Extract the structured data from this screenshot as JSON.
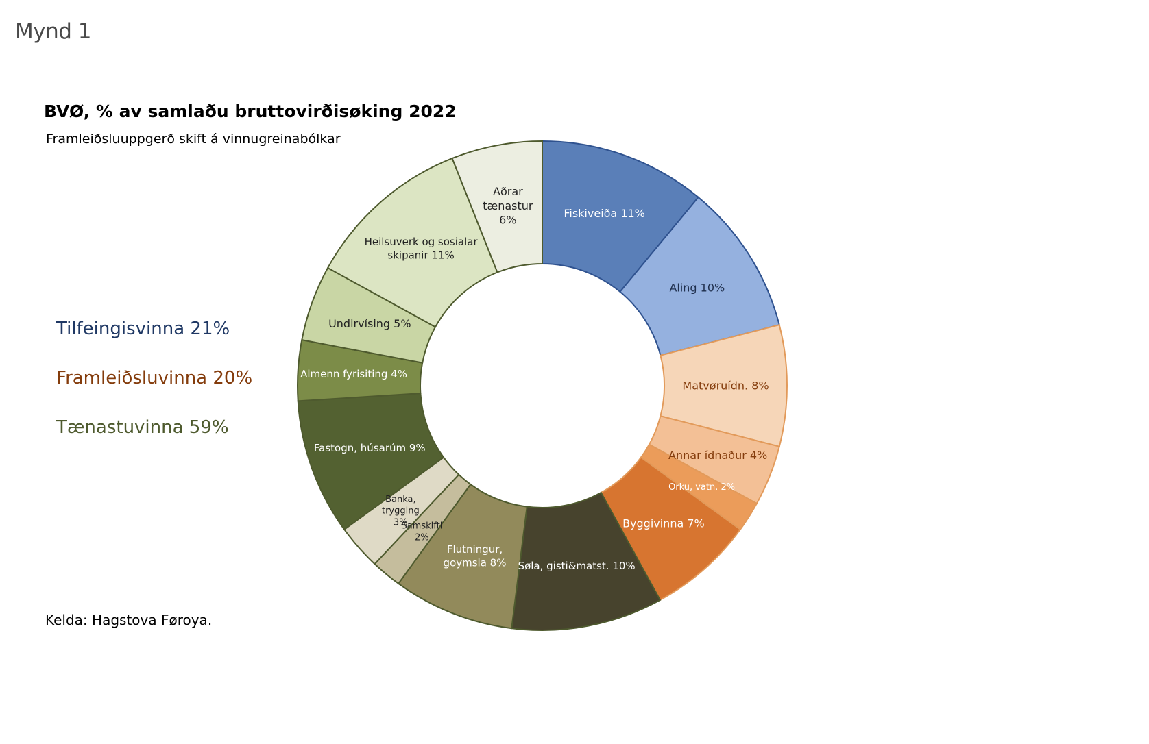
{
  "figure_label": "Mynd 1",
  "source": "Kelda: Hagstova Føroya.",
  "colors": {
    "tilfeingi_text": "#1f3864",
    "framleidslu_text": "#843c0c",
    "taenastu_text": "#4e5a2e"
  },
  "chart_data": {
    "type": "pie",
    "donut": true,
    "title": "BVØ, % av samlaðu bruttovirðisøking 2022",
    "subtitle": "Framleiðsluuppgerð skift á vinnugreinabólkar",
    "groups": [
      {
        "label": "Tilfeingisvinna 21%",
        "color": "#1f3864"
      },
      {
        "label": "Framleiðsluvinna 20%",
        "color": "#843c0c"
      },
      {
        "label": "Tænastuvinna 59%",
        "color": "#4e5a2e"
      }
    ],
    "slices": [
      {
        "name": "Fiskiveiða",
        "value": 11,
        "label_lines": [
          "Fiskiveiða 11%"
        ],
        "color": "#5a7fb8",
        "stroke": "#2f528f",
        "text_color": "#ffffff"
      },
      {
        "name": "Aling",
        "value": 10,
        "label_lines": [
          "Aling 10%"
        ],
        "color": "#95b1df",
        "stroke": "#2f528f",
        "text_color": "#1f2f4d"
      },
      {
        "name": "Matvøruídn.",
        "value": 8,
        "label_lines": [
          "Matvøruídn. 8%"
        ],
        "color": "#f6d6b8",
        "stroke": "#e29a5a",
        "text_color": "#843c0c"
      },
      {
        "name": "Annar ídnaður",
        "value": 4,
        "label_lines": [
          "Annar ídnaður 4%"
        ],
        "color": "#f3c096",
        "stroke": "#e29a5a",
        "text_color": "#843c0c"
      },
      {
        "name": "Orku, vatn.",
        "value": 2,
        "label_lines": [
          "Orku, vatn. 2%"
        ],
        "color": "#eb9c5a",
        "stroke": "#e29a5a",
        "text_color": "#ffffff"
      },
      {
        "name": "Byggivinna",
        "value": 7,
        "label_lines": [
          "Byggivinna 7%"
        ],
        "color": "#d77530",
        "stroke": "#e29a5a",
        "text_color": "#ffffff"
      },
      {
        "name": "Søla, gisti&matst.",
        "value": 10,
        "label_lines": [
          "Søla, gisti&matst. 10%"
        ],
        "color": "#47432d",
        "stroke": "#4e5a2e",
        "text_color": "#ffffff"
      },
      {
        "name": "Flutningur, goymsla",
        "value": 8,
        "label_lines": [
          "Flutningur,",
          "goymsla 8%"
        ],
        "color": "#928a5b",
        "stroke": "#4e5a2e",
        "text_color": "#ffffff"
      },
      {
        "name": "Samskifti",
        "value": 2,
        "label_lines": [
          "Samskifti",
          "2%"
        ],
        "color": "#c5bd9d",
        "stroke": "#4e5a2e",
        "text_color": "#222222"
      },
      {
        "name": "Banka, trygging",
        "value": 3,
        "label_lines": [
          "Banka,",
          "trygging",
          "3%"
        ],
        "color": "#dfdac6",
        "stroke": "#4e5a2e",
        "text_color": "#222222"
      },
      {
        "name": "Fastogn, húsarúm",
        "value": 9,
        "label_lines": [
          "Fastogn, húsarúm 9%"
        ],
        "color": "#536131",
        "stroke": "#4e5a2e",
        "text_color": "#ffffff"
      },
      {
        "name": "Almenn fyrisiting",
        "value": 4,
        "label_lines": [
          "Almenn fyrisiting 4%"
        ],
        "color": "#7c8c48",
        "stroke": "#4e5a2e",
        "text_color": "#ffffff"
      },
      {
        "name": "Undirvísing",
        "value": 5,
        "label_lines": [
          "Undirvísing 5%"
        ],
        "color": "#c9d6a5",
        "stroke": "#4e5a2e",
        "text_color": "#222222"
      },
      {
        "name": "Heilsuverk og sosialar skipanir",
        "value": 11,
        "label_lines": [
          "Heilsuverk og sosialar",
          "skipanir 11%"
        ],
        "color": "#dce5c3",
        "stroke": "#4e5a2e",
        "text_color": "#222222"
      },
      {
        "name": "Aðrar tænastur",
        "value": 6,
        "label_lines": [
          "Aðrar",
          "tænastur",
          "6%"
        ],
        "color": "#eceee1",
        "stroke": "#4e5a2e",
        "text_color": "#222222"
      }
    ]
  }
}
